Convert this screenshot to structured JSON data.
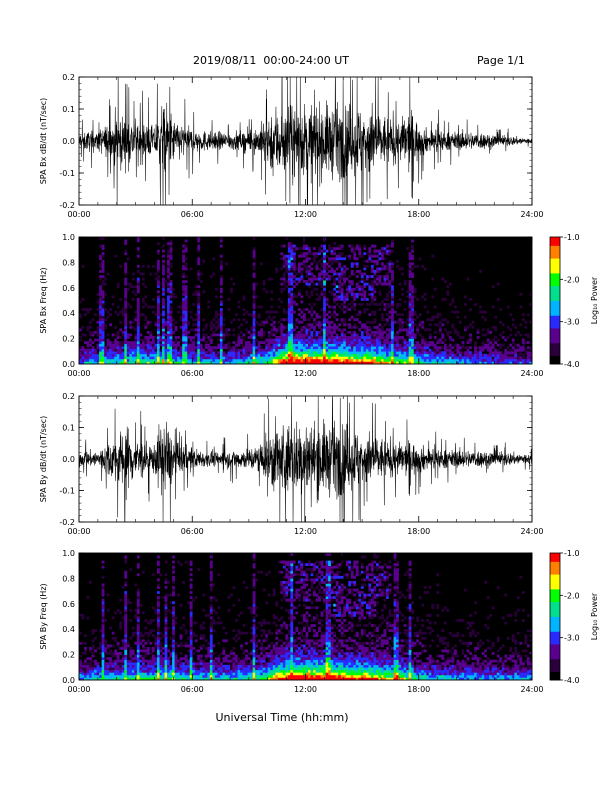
{
  "header": {
    "date_range": "2019/08/11  00:00-24:00 UT",
    "page": "Page 1/1"
  },
  "colors": {
    "trace": "#000000",
    "spectrogram_background": "#000000",
    "colormap": [
      "#000000",
      "#2a003a",
      "#5a008e",
      "#2a2aff",
      "#00b4ff",
      "#00e08c",
      "#00ff00",
      "#ffff00",
      "#ff8000",
      "#ff0000"
    ]
  },
  "chart_data": [
    {
      "type": "line",
      "ylabel": "SPA Bx dB/dt (nT/sec)",
      "x_ticks": [
        "00:00",
        "06:00",
        "12:00",
        "18:00",
        "24:00"
      ],
      "xlim": [
        0,
        24
      ],
      "ylim": [
        -0.2,
        0.2
      ],
      "y_ticks": [
        "0.2",
        "0.1",
        "0.0",
        "-0.1",
        "-0.2"
      ],
      "envelope": {
        "x_hours": [
          0,
          1,
          1.5,
          2,
          2.5,
          3,
          3.5,
          4,
          4.3,
          4.7,
          5,
          6,
          7,
          8,
          9,
          9.5,
          10,
          10.3,
          10.7,
          11,
          11.5,
          12,
          12.5,
          13,
          13.5,
          14,
          14.5,
          15,
          15.5,
          16,
          16.5,
          17,
          17.5,
          18,
          18.5,
          19,
          19.5,
          20,
          21,
          22,
          23,
          24
        ],
        "amplitude": [
          0.05,
          0.06,
          0.09,
          0.17,
          0.12,
          0.12,
          0.1,
          0.08,
          0.2,
          0.2,
          0.12,
          0.07,
          0.05,
          0.05,
          0.06,
          0.08,
          0.14,
          0.2,
          0.2,
          0.2,
          0.2,
          0.2,
          0.2,
          0.2,
          0.2,
          0.2,
          0.2,
          0.2,
          0.2,
          0.14,
          0.14,
          0.11,
          0.18,
          0.1,
          0.06,
          0.07,
          0.05,
          0.05,
          0.05,
          0.04,
          0.025,
          0.015
        ]
      }
    },
    {
      "type": "heatmap",
      "ylabel": "SPA Bx Freq (Hz)",
      "x_ticks": [
        "00:00",
        "06:00",
        "12:00",
        "18:00",
        "24:00"
      ],
      "xlim": [
        0,
        24
      ],
      "ylim": [
        0,
        1
      ],
      "y_ticks": [
        "1.0",
        "0.8",
        "0.6",
        "0.4",
        "0.2",
        "0.0"
      ],
      "colorbar": {
        "label": "Log₁₀ Power",
        "range": [
          -4.0,
          -1.0
        ],
        "ticks": [
          "-1.0",
          "-2.0",
          "-3.0",
          "-4.0"
        ]
      },
      "activity_hours": [
        0,
        2,
        4,
        6,
        8,
        10,
        10.5,
        11,
        12,
        13,
        14,
        15,
        16,
        17,
        18,
        19,
        20,
        22,
        24
      ],
      "activity_level": [
        0.35,
        0.45,
        0.5,
        0.4,
        0.35,
        0.5,
        0.75,
        0.9,
        0.95,
        0.9,
        0.85,
        0.8,
        0.7,
        0.6,
        0.45,
        0.4,
        0.35,
        0.3,
        0.25
      ],
      "vertical_streaks_hours": [
        1.2,
        2.5,
        3.1,
        4.2,
        4.5,
        4.8,
        5.6,
        6.3,
        7.5,
        9.3,
        11.2,
        13.0,
        16.6,
        17.6
      ]
    },
    {
      "type": "line",
      "ylabel": "SPA By dB/dt (nT/sec)",
      "x_ticks": [
        "00:00",
        "06:00",
        "12:00",
        "18:00",
        "24:00"
      ],
      "xlim": [
        0,
        24
      ],
      "ylim": [
        -0.2,
        0.2
      ],
      "y_ticks": [
        "0.2",
        "0.1",
        "0.0",
        "-0.1",
        "-0.2"
      ],
      "envelope": {
        "x_hours": [
          0,
          1,
          1.5,
          2,
          2.5,
          3,
          3.5,
          4,
          4.3,
          4.7,
          5,
          6,
          7,
          8,
          9,
          9.5,
          10,
          10.3,
          10.7,
          11,
          11.5,
          12,
          12.5,
          13,
          13.5,
          14,
          14.5,
          15,
          15.5,
          16,
          16.5,
          17,
          17.5,
          18,
          18.5,
          19,
          19.5,
          20,
          21,
          22,
          23,
          24
        ],
        "amplitude": [
          0.04,
          0.05,
          0.09,
          0.14,
          0.2,
          0.12,
          0.1,
          0.08,
          0.2,
          0.2,
          0.11,
          0.06,
          0.04,
          0.05,
          0.06,
          0.08,
          0.13,
          0.2,
          0.2,
          0.2,
          0.2,
          0.2,
          0.2,
          0.2,
          0.2,
          0.2,
          0.18,
          0.16,
          0.14,
          0.12,
          0.1,
          0.09,
          0.1,
          0.08,
          0.06,
          0.06,
          0.05,
          0.05,
          0.05,
          0.045,
          0.035,
          0.03
        ]
      }
    },
    {
      "type": "heatmap",
      "ylabel": "SPA By Freq (Hz)",
      "x_ticks": [
        "00:00",
        "06:00",
        "12:00",
        "18:00",
        "24:00"
      ],
      "xlim": [
        0,
        24
      ],
      "ylim": [
        0,
        1
      ],
      "y_ticks": [
        "1.0",
        "0.8",
        "0.6",
        "0.4",
        "0.2",
        "0.0"
      ],
      "colorbar": {
        "label": "Log₁₀ Power",
        "range": [
          -4.0,
          -1.0
        ],
        "ticks": [
          "-1.0",
          "-2.0",
          "-3.0",
          "-4.0"
        ]
      },
      "activity_hours": [
        0,
        2,
        4,
        6,
        8,
        10,
        10.5,
        11,
        12,
        13,
        14,
        15,
        16,
        17,
        18,
        19,
        20,
        22,
        24
      ],
      "activity_level": [
        0.35,
        0.45,
        0.5,
        0.45,
        0.4,
        0.55,
        0.8,
        0.9,
        0.95,
        0.9,
        0.85,
        0.8,
        0.7,
        0.6,
        0.45,
        0.4,
        0.35,
        0.35,
        0.35
      ],
      "vertical_streaks_hours": [
        1.3,
        2.5,
        3.1,
        4.2,
        4.6,
        5.0,
        5.9,
        7.0,
        9.3,
        11.3,
        13.2,
        16.8,
        17.5
      ]
    }
  ],
  "x_axis_title": "Universal Time (hh:mm)"
}
